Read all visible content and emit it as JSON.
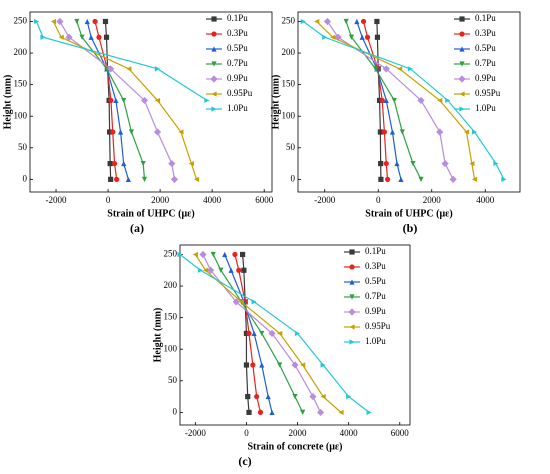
{
  "chart_data": [
    {
      "type": "line",
      "label": "(a)",
      "x_label": "Strain of UHPC (με)",
      "y_label": "Height (mm)",
      "xlim": [
        -3000,
        6300
      ],
      "ylim": [
        -20,
        265
      ],
      "xticks": [
        -2000,
        0,
        2000,
        4000,
        6000
      ],
      "yticks": [
        0,
        50,
        100,
        150,
        200,
        250
      ],
      "legend": "upper right",
      "y": [
        0,
        25,
        75,
        125,
        175,
        225,
        250
      ],
      "series": [
        {
          "name": "0.1Pu",
          "color": "#3a3a3a",
          "marker": "square",
          "x": [
            100,
            80,
            60,
            40,
            -20,
            -60,
            -100
          ]
        },
        {
          "name": "0.3Pu",
          "color": "#e8221c",
          "marker": "circle",
          "x": [
            330,
            250,
            180,
            110,
            -30,
            -350,
            -500
          ]
        },
        {
          "name": "0.5Pu",
          "color": "#1f5fd6",
          "marker": "triangle-up",
          "x": [
            780,
            600,
            480,
            300,
            -50,
            -650,
            -800
          ]
        },
        {
          "name": "0.7Pu",
          "color": "#2ea043",
          "marker": "triangle-down",
          "x": [
            1400,
            1350,
            900,
            600,
            -50,
            -1000,
            -1200
          ]
        },
        {
          "name": "0.9Pu",
          "color": "#b98ce0",
          "marker": "diamond",
          "x": [
            2550,
            2450,
            1900,
            1400,
            100,
            -1500,
            -1850
          ]
        },
        {
          "name": "0.95Pu",
          "color": "#c8a000",
          "marker": "triangle-left",
          "x": [
            3400,
            3200,
            2800,
            1900,
            800,
            -1800,
            -2100
          ]
        },
        {
          "name": "1.0Pu",
          "color": "#22c8d8",
          "marker": "triangle-right",
          "x": [
            null,
            null,
            null,
            3800,
            1900,
            -2500,
            -2750
          ]
        }
      ]
    },
    {
      "type": "line",
      "label": "(b)",
      "x_label": "Strain of UHPC (με)",
      "y_label": "Height (mm)",
      "xlim": [
        -3000,
        5300
      ],
      "ylim": [
        -20,
        265
      ],
      "xticks": [
        -2000,
        0,
        2000,
        4000
      ],
      "yticks": [
        0,
        50,
        100,
        150,
        200,
        250
      ],
      "legend": "upper right",
      "y": [
        0,
        25,
        75,
        125,
        175,
        225,
        250
      ],
      "series": [
        {
          "name": "0.1Pu",
          "color": "#3a3a3a",
          "marker": "square",
          "x": [
            100,
            90,
            80,
            50,
            0,
            -30,
            -50
          ]
        },
        {
          "name": "0.3Pu",
          "color": "#e8221c",
          "marker": "circle",
          "x": [
            350,
            300,
            230,
            150,
            -20,
            -400,
            -550
          ]
        },
        {
          "name": "0.5Pu",
          "color": "#1f5fd6",
          "marker": "triangle-up",
          "x": [
            850,
            700,
            530,
            300,
            -50,
            -600,
            -800
          ]
        },
        {
          "name": "0.7Pu",
          "color": "#2ea043",
          "marker": "triangle-down",
          "x": [
            1600,
            1300,
            900,
            600,
            -100,
            -1000,
            -1200
          ]
        },
        {
          "name": "0.9Pu",
          "color": "#b98ce0",
          "marker": "diamond",
          "x": [
            2800,
            2500,
            2300,
            1600,
            300,
            -1500,
            -1900
          ]
        },
        {
          "name": "0.95Pu",
          "color": "#c8a000",
          "marker": "triangle-left",
          "x": [
            3600,
            3500,
            3300,
            2300,
            800,
            -1700,
            -2300
          ]
        },
        {
          "name": "1.0Pu",
          "color": "#22c8d8",
          "marker": "triangle-right",
          "x": [
            4700,
            4400,
            3600,
            2600,
            1200,
            -2000,
            -2800
          ]
        }
      ]
    },
    {
      "type": "line",
      "label": "(c)",
      "x_label": "Strain of concrete (με)",
      "y_label": "Height (mm)",
      "xlim": [
        -2600,
        6400
      ],
      "ylim": [
        -20,
        265
      ],
      "xticks": [
        -2000,
        0,
        2000,
        4000,
        6000
      ],
      "yticks": [
        0,
        50,
        100,
        150,
        200,
        250
      ],
      "legend": "upper right",
      "y": [
        0,
        25,
        75,
        125,
        175,
        225,
        250
      ],
      "series": [
        {
          "name": "0.1Pu",
          "color": "#3a3a3a",
          "marker": "square",
          "x": [
            100,
            50,
            0,
            0,
            -50,
            -100,
            -150
          ]
        },
        {
          "name": "0.3Pu",
          "color": "#e8221c",
          "marker": "circle",
          "x": [
            550,
            400,
            250,
            100,
            -50,
            -300,
            -450
          ]
        },
        {
          "name": "0.5Pu",
          "color": "#1f5fd6",
          "marker": "triangle-up",
          "x": [
            1000,
            850,
            600,
            300,
            -100,
            -600,
            -850
          ]
        },
        {
          "name": "0.7Pu",
          "color": "#2ea043",
          "marker": "triangle-down",
          "x": [
            2200,
            1900,
            1300,
            600,
            -200,
            -1000,
            -1300
          ]
        },
        {
          "name": "0.9Pu",
          "color": "#b98ce0",
          "marker": "diamond",
          "x": [
            2900,
            2600,
            1900,
            1000,
            -400,
            -1400,
            -1700
          ]
        },
        {
          "name": "0.95Pu",
          "color": "#c8a000",
          "marker": "triangle-left",
          "x": [
            3700,
            3000,
            2200,
            1300,
            -200,
            -1600,
            -2000
          ]
        },
        {
          "name": "1.0Pu",
          "color": "#22c8d8",
          "marker": "triangle-right",
          "x": [
            4800,
            4000,
            3000,
            2000,
            300,
            -1800,
            -2600
          ]
        }
      ]
    }
  ]
}
